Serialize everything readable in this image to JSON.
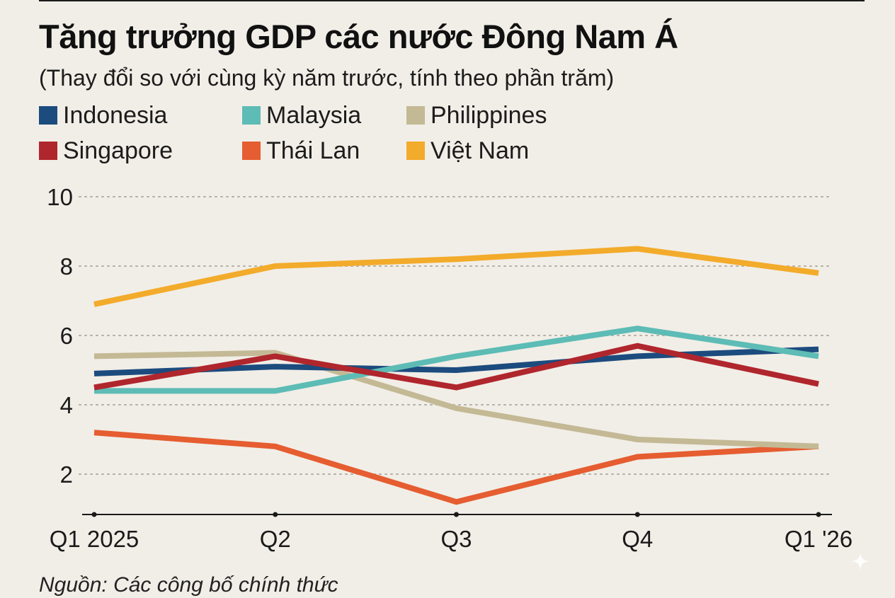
{
  "header": {
    "title": "Tăng trưởng GDP các nước Đông Nam Á",
    "subtitle": "(Thay đổi so với cùng kỳ năm trước, tính theo phần trăm)"
  },
  "footer": {
    "source": "Nguồn: Các công bố chính thức"
  },
  "colors": {
    "background": "#f1eee7",
    "Indonesia": "#1c4b7e",
    "Malaysia": "#5dbcb5",
    "Philippines": "#c4b995",
    "Singapore": "#b0262d",
    "Thái Lan": "#e55d30",
    "Việt Nam": "#f3ab2b"
  },
  "chart_data": {
    "type": "line",
    "title": "Tăng trưởng GDP các nước Đông Nam Á",
    "subtitle": "(Thay đổi so với cùng kỳ năm trước, tính theo phần trăm)",
    "categories": [
      "Q1 2025",
      "Q2",
      "Q3",
      "Q4",
      "Q1 '26"
    ],
    "ylim": [
      1,
      10
    ],
    "yticks": [
      2,
      4,
      6,
      8,
      10
    ],
    "grid": true,
    "legend_position": "top",
    "series": [
      {
        "name": "Indonesia",
        "values": [
          4.9,
          5.1,
          5.0,
          5.4,
          5.6
        ]
      },
      {
        "name": "Malaysia",
        "values": [
          4.4,
          4.4,
          5.4,
          6.2,
          5.4
        ]
      },
      {
        "name": "Philippines",
        "values": [
          5.4,
          5.5,
          3.9,
          3.0,
          2.8
        ]
      },
      {
        "name": "Singapore",
        "values": [
          4.5,
          5.4,
          4.5,
          5.7,
          4.6
        ]
      },
      {
        "name": "Thái Lan",
        "values": [
          3.2,
          2.8,
          1.2,
          2.5,
          2.8
        ]
      },
      {
        "name": "Việt Nam",
        "values": [
          6.9,
          8.0,
          8.2,
          8.5,
          7.8
        ]
      }
    ]
  }
}
